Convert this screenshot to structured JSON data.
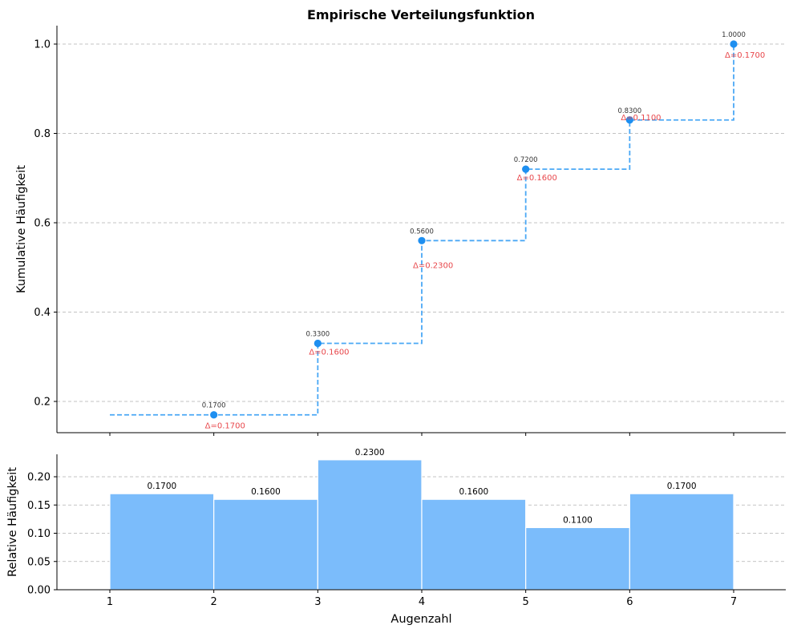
{
  "chart_data": [
    {
      "type": "line",
      "subtype": "step",
      "title": "Empirische Verteilungsfunktion",
      "xlabel": "",
      "ylabel": "Kumulative Häufigkeit",
      "x": [
        1,
        2,
        3,
        4,
        5,
        6,
        7
      ],
      "start_value": 0.17,
      "points": [
        {
          "x": 2,
          "y": 0.17,
          "label": "0.1700",
          "delta": "Δ=0.1700"
        },
        {
          "x": 3,
          "y": 0.33,
          "label": "0.3300",
          "delta": "Δ=0.1600"
        },
        {
          "x": 4,
          "y": 0.56,
          "label": "0.5600",
          "delta": "Δ=0.2300"
        },
        {
          "x": 5,
          "y": 0.72,
          "label": "0.7200",
          "delta": "Δ=0.1600"
        },
        {
          "x": 6,
          "y": 0.83,
          "label": "0.8300",
          "delta": "Δ=0.1100"
        },
        {
          "x": 7,
          "y": 1.0,
          "label": "1.0000",
          "delta": "Δ=0.1700"
        }
      ],
      "xlim": [
        0.5,
        7.5
      ],
      "ylim": [
        0.13,
        1.04
      ],
      "yticks": [
        "0.2",
        "0.4",
        "0.6",
        "0.8",
        "1.0"
      ],
      "ytick_values": [
        0.2,
        0.4,
        0.6,
        0.8,
        1.0
      ],
      "grid": "y-dashed",
      "colors": {
        "line": "#4aa8f5",
        "point": "#1e8ff0",
        "delta": "#e8474b"
      }
    },
    {
      "type": "bar",
      "title": "",
      "xlabel": "Augenzahl",
      "ylabel": "Relative Häufigkeit",
      "bins": [
        [
          1,
          2
        ],
        [
          2,
          3
        ],
        [
          3,
          4
        ],
        [
          4,
          5
        ],
        [
          5,
          6
        ],
        [
          6,
          7
        ]
      ],
      "values": [
        0.17,
        0.16,
        0.23,
        0.16,
        0.11,
        0.17
      ],
      "value_labels": [
        "0.1700",
        "0.1600",
        "0.2300",
        "0.1600",
        "0.1100",
        "0.1700"
      ],
      "xlim": [
        0.5,
        7.5
      ],
      "ylim": [
        0,
        0.24
      ],
      "xticks": [
        "1",
        "2",
        "3",
        "4",
        "5",
        "6",
        "7"
      ],
      "xtick_values": [
        1,
        2,
        3,
        4,
        5,
        6,
        7
      ],
      "yticks": [
        "0.00",
        "0.05",
        "0.10",
        "0.15",
        "0.20"
      ],
      "ytick_values": [
        0,
        0.05,
        0.1,
        0.15,
        0.2
      ],
      "grid": "y-dashed",
      "colors": {
        "bar": "#7bbcfb",
        "edge": "#ffffff"
      }
    }
  ]
}
